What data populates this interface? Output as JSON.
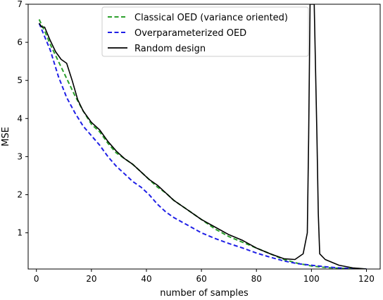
{
  "chart_data": {
    "type": "line",
    "title": "",
    "xlabel": "number of samples",
    "ylabel": "MSE",
    "xlim": [
      -3,
      125
    ],
    "ylim": [
      0.05,
      7
    ],
    "xticks": [
      0,
      20,
      40,
      60,
      80,
      100,
      120
    ],
    "yticks": [
      1,
      2,
      3,
      4,
      5,
      6,
      7
    ],
    "grid": false,
    "legend_position": "top-center",
    "series": [
      {
        "name": "Classical OED (variance oriented)",
        "color": "#2ca02c",
        "dash": "dashed",
        "x": [
          1,
          3,
          5,
          8,
          11,
          14,
          17,
          20,
          23,
          26,
          29,
          32,
          35,
          38,
          41,
          44,
          47,
          50,
          55,
          60,
          65,
          70,
          75,
          80,
          85,
          90,
          95,
          100,
          105,
          110,
          115,
          120
        ],
        "y": [
          6.6,
          6.3,
          5.95,
          5.5,
          5.05,
          4.6,
          4.2,
          3.85,
          3.65,
          3.35,
          3.1,
          2.95,
          2.8,
          2.6,
          2.4,
          2.2,
          2.05,
          1.85,
          1.6,
          1.35,
          1.1,
          0.9,
          0.75,
          0.6,
          0.45,
          0.3,
          0.2,
          0.13,
          0.09,
          0.07,
          0.06,
          0.05
        ]
      },
      {
        "name": "Overparameterized OED",
        "color": "#1f1fe6",
        "dash": "dashed",
        "x": [
          1,
          3,
          5,
          8,
          11,
          14,
          17,
          20,
          23,
          26,
          29,
          32,
          35,
          38,
          41,
          44,
          47,
          50,
          55,
          60,
          65,
          70,
          75,
          80,
          85,
          90,
          95,
          100,
          105,
          110,
          115,
          120
        ],
        "y": [
          6.5,
          6.15,
          5.8,
          5.1,
          4.55,
          4.15,
          3.8,
          3.55,
          3.3,
          3.0,
          2.75,
          2.55,
          2.35,
          2.2,
          2.0,
          1.75,
          1.55,
          1.4,
          1.2,
          1.0,
          0.85,
          0.72,
          0.6,
          0.47,
          0.36,
          0.26,
          0.19,
          0.15,
          0.11,
          0.08,
          0.06,
          0.05
        ]
      },
      {
        "name": "Random design",
        "color": "#000000",
        "dash": "solid",
        "x": [
          1,
          2,
          3,
          5,
          7,
          9,
          11,
          13,
          15,
          17,
          20,
          23,
          26,
          29,
          32,
          35,
          38,
          41,
          44,
          47,
          50,
          55,
          60,
          65,
          70,
          75,
          80,
          85,
          90,
          94,
          97,
          98.5,
          99,
          99.5,
          100,
          101,
          102,
          102.5,
          103,
          105,
          110,
          115,
          120
        ],
        "y": [
          6.5,
          6.4,
          6.4,
          6.05,
          5.75,
          5.55,
          5.45,
          5.0,
          4.5,
          4.2,
          3.9,
          3.7,
          3.4,
          3.15,
          2.95,
          2.8,
          2.6,
          2.4,
          2.25,
          2.05,
          1.85,
          1.6,
          1.35,
          1.15,
          0.95,
          0.8,
          0.6,
          0.45,
          0.32,
          0.3,
          0.45,
          1.0,
          3.5,
          7.0,
          7.0,
          7.0,
          3.5,
          1.5,
          0.45,
          0.3,
          0.15,
          0.08,
          0.05
        ]
      }
    ]
  }
}
